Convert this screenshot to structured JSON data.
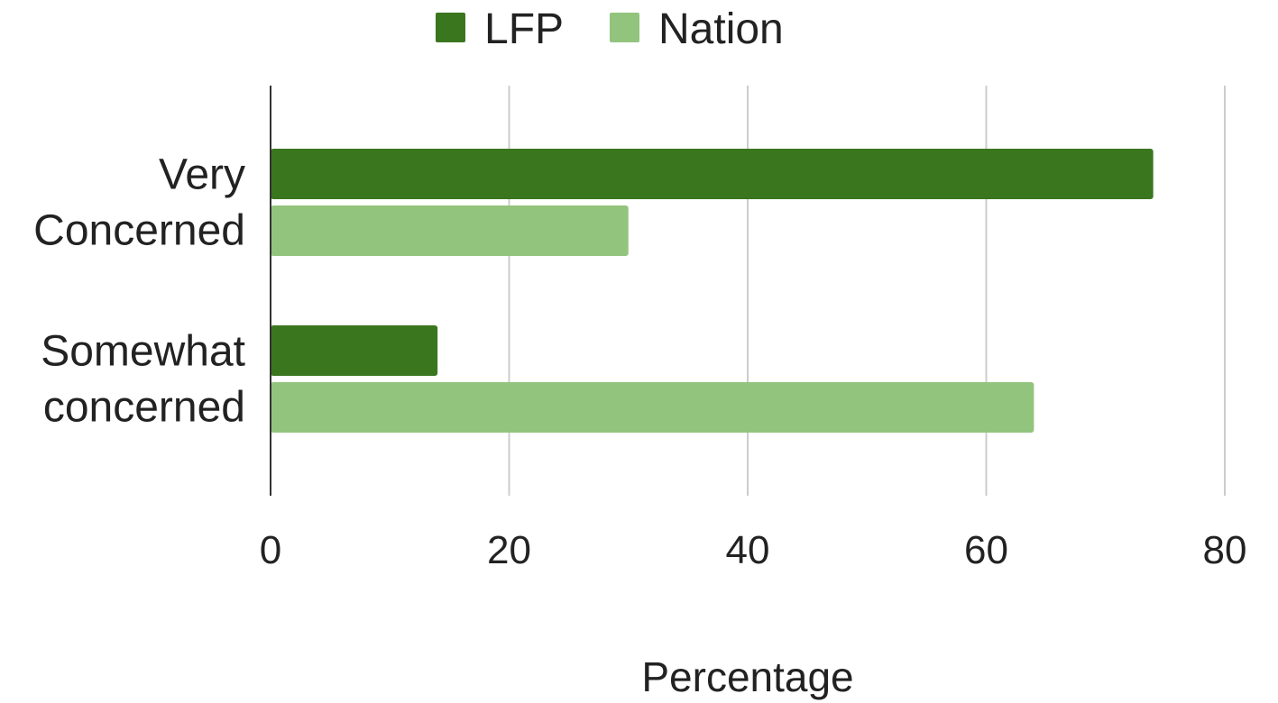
{
  "chart_data": {
    "type": "bar",
    "orientation": "horizontal",
    "categories": [
      [
        "Very",
        "Concerned"
      ],
      [
        "Somewhat",
        "concerned"
      ]
    ],
    "series": [
      {
        "name": "LFP",
        "color": "#3a761e",
        "values": [
          74,
          14
        ]
      },
      {
        "name": "Nation",
        "color": "#93c47d",
        "values": [
          30,
          64
        ]
      }
    ],
    "xlabel": "Percentage",
    "ylabel": "",
    "xlim": [
      0,
      80
    ],
    "xticks": [
      0,
      20,
      40,
      60,
      80
    ],
    "xtick_labels": [
      "0",
      "20",
      "40",
      "60",
      "80"
    ],
    "grid": true,
    "legend_position": "top"
  }
}
